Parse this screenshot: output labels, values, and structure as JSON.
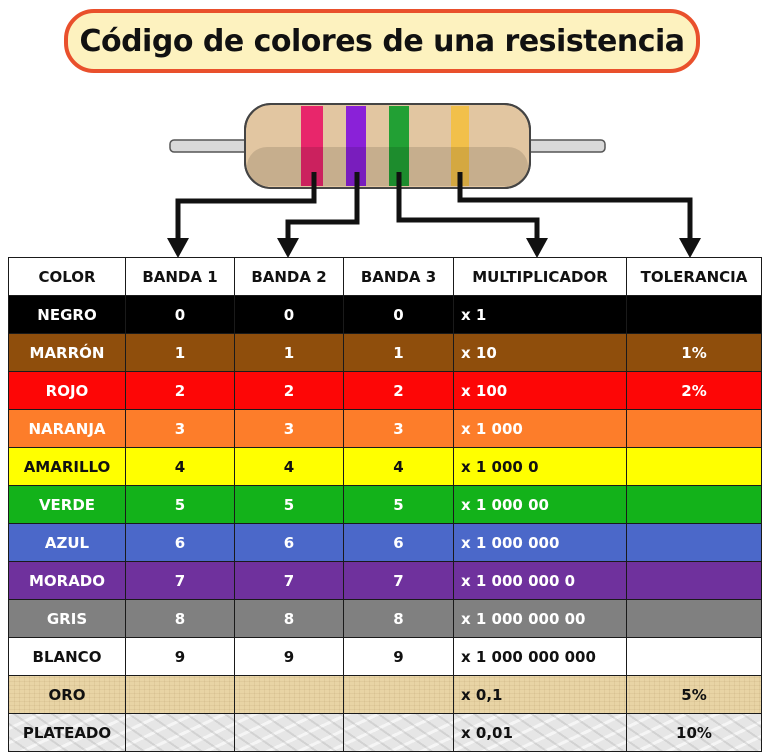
{
  "title": "Código de colores de una resistencia",
  "resistor": {
    "body_color": "#e2c6a1",
    "lead_color": "#d9d9d9",
    "bands": [
      {
        "name": "banda-1",
        "color": "#e8266b"
      },
      {
        "name": "banda-2",
        "color": "#8a21d8"
      },
      {
        "name": "banda-3",
        "color": "#22a034"
      },
      {
        "name": "multiplicador",
        "color": "#f2c04a"
      }
    ]
  },
  "table": {
    "headers": [
      "COLOR",
      "BANDA 1",
      "BANDA 2",
      "BANDA 3",
      "MULTIPLICADOR",
      "TOLERANCIA"
    ],
    "rows": [
      {
        "color": "NEGRO",
        "b1": "0",
        "b2": "0",
        "b3": "0",
        "mult": "x 1",
        "tol": "",
        "bg": "#000000",
        "fg": "#ffffff"
      },
      {
        "color": "MARRÓN",
        "b1": "1",
        "b2": "1",
        "b3": "1",
        "mult": "x 10",
        "tol": "1%",
        "bg": "#8f4e0c",
        "fg": "#ffffff"
      },
      {
        "color": "ROJO",
        "b1": "2",
        "b2": "2",
        "b3": "2",
        "mult": "x 100",
        "tol": "2%",
        "bg": "#fd0606",
        "fg": "#ffffff"
      },
      {
        "color": "NARANJA",
        "b1": "3",
        "b2": "3",
        "b3": "3",
        "mult": "x 1 000",
        "tol": "",
        "bg": "#fd7d2a",
        "fg": "#ffffff"
      },
      {
        "color": "AMARILLO",
        "b1": "4",
        "b2": "4",
        "b3": "4",
        "mult": "x 1 000 0",
        "tol": "",
        "bg": "#ffff00",
        "fg": "#111111"
      },
      {
        "color": "VERDE",
        "b1": "5",
        "b2": "5",
        "b3": "5",
        "mult": "x 1 000 00",
        "tol": "",
        "bg": "#13b21a",
        "fg": "#ffffff"
      },
      {
        "color": "AZUL",
        "b1": "6",
        "b2": "6",
        "b3": "6",
        "mult": "x 1 000 000",
        "tol": "",
        "bg": "#4b68c9",
        "fg": "#ffffff"
      },
      {
        "color": "MORADO",
        "b1": "7",
        "b2": "7",
        "b3": "7",
        "mult": "x 1 000 000 0",
        "tol": "",
        "bg": "#6f319d",
        "fg": "#ffffff"
      },
      {
        "color": "GRIS",
        "b1": "8",
        "b2": "8",
        "b3": "8",
        "mult": "x 1 000 000 00",
        "tol": "",
        "bg": "#808080",
        "fg": "#ffffff"
      },
      {
        "color": "BLANCO",
        "b1": "9",
        "b2": "9",
        "b3": "9",
        "mult": "x 1 000 000 000",
        "tol": "",
        "bg": "#ffffff",
        "fg": "#111111"
      },
      {
        "color": "ORO",
        "b1": "",
        "b2": "",
        "b3": "",
        "mult": "x 0,1",
        "tol": "5%",
        "bg": "#e8d4a5",
        "fg": "#111111",
        "texture": "paper"
      },
      {
        "color": "PLATEADO",
        "b1": "",
        "b2": "",
        "b3": "",
        "mult": "x 0,01",
        "tol": "10%",
        "bg": "#e6e6e6",
        "fg": "#111111",
        "texture": "marble"
      }
    ]
  }
}
